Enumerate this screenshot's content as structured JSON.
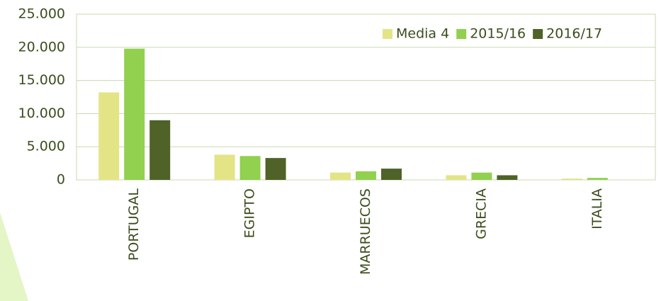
{
  "chart_data": {
    "type": "bar",
    "categories": [
      "PORTUGAL",
      "EGIPTO",
      "MARRUECOS",
      "GRECIA",
      "ITALIA"
    ],
    "series": [
      {
        "name": "Media 4",
        "color": "#e3e486",
        "values": [
          13200,
          3800,
          1100,
          700,
          200
        ]
      },
      {
        "name": "2015/16",
        "color": "#92d050",
        "values": [
          19800,
          3600,
          1300,
          1100,
          300
        ]
      },
      {
        "name": "2016/17",
        "color": "#4f6228",
        "values": [
          9000,
          3300,
          1700,
          700,
          0
        ]
      }
    ],
    "ylim": [
      0,
      25000
    ],
    "yticks": [
      0,
      {
        "value": 5000,
        "label": "5.000"
      },
      {
        "value": 10000,
        "label": "10.000"
      },
      {
        "value": 15000,
        "label": "15.000"
      },
      {
        "value": 20000,
        "label": "20.000"
      },
      {
        "value": 25000,
        "label": "25.000"
      }
    ],
    "grid": true,
    "legend": "top-right"
  }
}
